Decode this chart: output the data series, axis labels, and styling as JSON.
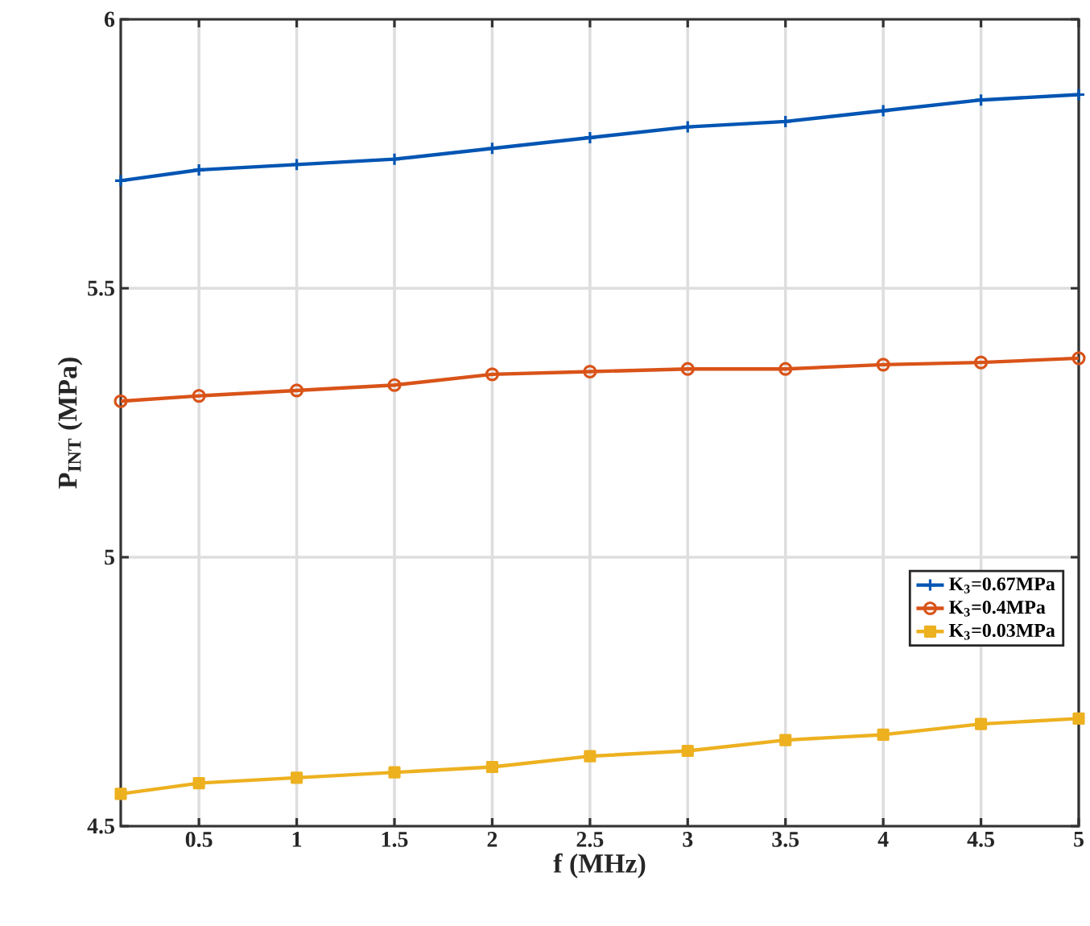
{
  "chart_data": {
    "type": "line",
    "xlabel": "f (MHz)",
    "ylabel": "P$_{INT}$ (MPa)",
    "x": [
      0.1,
      0.5,
      1,
      1.5,
      2,
      2.5,
      3,
      3.5,
      4,
      4.5,
      5
    ],
    "series": [
      {
        "name": "K$_{3}$=0.67MPa",
        "color": "#0055b3",
        "marker": "cross",
        "values": [
          5.7,
          5.72,
          5.73,
          5.74,
          5.76,
          5.78,
          5.8,
          5.81,
          5.83,
          5.85,
          5.86
        ]
      },
      {
        "name": "K$_{3}$=0.4MPa",
        "color": "#d95319",
        "marker": "circle",
        "values": [
          5.29,
          5.3,
          5.31,
          5.32,
          5.34,
          5.345,
          5.35,
          5.35,
          5.358,
          5.362,
          5.37
        ]
      },
      {
        "name": "K$_{3}$=0.03MPa",
        "color": "#edb120",
        "marker": "square",
        "values": [
          4.56,
          4.58,
          4.59,
          4.6,
          4.61,
          4.63,
          4.64,
          4.66,
          4.67,
          4.69,
          4.7
        ]
      }
    ],
    "xlim": [
      0.1,
      5
    ],
    "xticks": [
      0.5,
      1,
      1.5,
      2,
      2.5,
      3,
      3.5,
      4,
      4.5,
      5
    ],
    "ylim": [
      4.5,
      6
    ],
    "yticks": [
      4.5,
      5,
      5.5,
      6
    ],
    "grid": true,
    "legend": "bottom right",
    "line_style": "solid"
  }
}
